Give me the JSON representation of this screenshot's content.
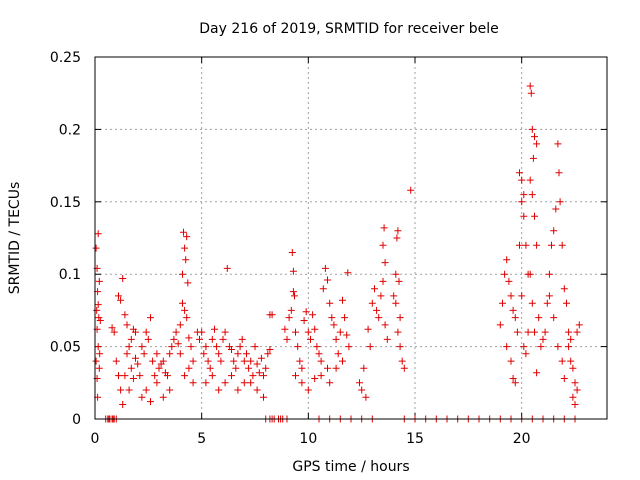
{
  "chart_data": {
    "type": "scatter",
    "title": "Day 216 of 2019, SRMTID for receiver bele",
    "xlabel": "GPS time / hours",
    "ylabel": "SRMTID / TECUs",
    "xlim": [
      0,
      24
    ],
    "ylim": [
      0,
      0.25
    ],
    "x_ticks": [
      0,
      5,
      10,
      15,
      20
    ],
    "x_tick_labels": [
      "0",
      "5",
      "10",
      "15",
      "20"
    ],
    "y_ticks": [
      0,
      0.05,
      0.1,
      0.15,
      0.2,
      0.25
    ],
    "y_tick_labels": [
      "0",
      "0.05",
      "0.1",
      "0.15",
      "0.2",
      "0.25"
    ],
    "grid": true,
    "marker": "+",
    "marker_color": "#e00000",
    "series": [
      {
        "name": "SRMTID",
        "points": [
          [
            0.05,
            0.118
          ],
          [
            0.1,
            0.104
          ],
          [
            0.15,
            0.128
          ],
          [
            0.12,
            0.088
          ],
          [
            0.08,
            0.075
          ],
          [
            0.2,
            0.095
          ],
          [
            0.1,
            0.062
          ],
          [
            0.15,
            0.05
          ],
          [
            0.05,
            0.04
          ],
          [
            0.2,
            0.035
          ],
          [
            0.1,
            0.028
          ],
          [
            0.12,
            0.015
          ],
          [
            0.18,
            0.07
          ],
          [
            0.25,
            0.068
          ],
          [
            0.22,
            0.045
          ],
          [
            0.15,
            0.079
          ],
          [
            0.5,
            0.0
          ],
          [
            0.6,
            0.0
          ],
          [
            0.7,
            0.0
          ],
          [
            0.8,
            0.0
          ],
          [
            0.9,
            0.0
          ],
          [
            1.0,
            0.0
          ],
          [
            0.65,
            0.0
          ],
          [
            0.85,
            0.0
          ],
          [
            0.8,
            0.063
          ],
          [
            0.9,
            0.06
          ],
          [
            1.0,
            0.04
          ],
          [
            1.1,
            0.085
          ],
          [
            1.2,
            0.082
          ],
          [
            1.3,
            0.097
          ],
          [
            1.1,
            0.03
          ],
          [
            1.2,
            0.02
          ],
          [
            1.3,
            0.01
          ],
          [
            1.4,
            0.072
          ],
          [
            1.5,
            0.065
          ],
          [
            1.5,
            0.045
          ],
          [
            1.6,
            0.05
          ],
          [
            1.7,
            0.055
          ],
          [
            1.8,
            0.062
          ],
          [
            1.9,
            0.06
          ],
          [
            1.4,
            0.03
          ],
          [
            1.6,
            0.02
          ],
          [
            1.7,
            0.035
          ],
          [
            1.8,
            0.028
          ],
          [
            1.9,
            0.042
          ],
          [
            2.0,
            0.038
          ],
          [
            2.1,
            0.03
          ],
          [
            2.2,
            0.05
          ],
          [
            2.3,
            0.045
          ],
          [
            2.4,
            0.06
          ],
          [
            2.5,
            0.055
          ],
          [
            2.6,
            0.07
          ],
          [
            2.2,
            0.015
          ],
          [
            2.4,
            0.02
          ],
          [
            2.6,
            0.012
          ],
          [
            2.8,
            0.03
          ],
          [
            2.9,
            0.025
          ],
          [
            3.0,
            0.035
          ],
          [
            3.1,
            0.038
          ],
          [
            3.2,
            0.04
          ],
          [
            3.3,
            0.032
          ],
          [
            3.4,
            0.03
          ],
          [
            3.5,
            0.045
          ],
          [
            3.6,
            0.05
          ],
          [
            3.7,
            0.055
          ],
          [
            3.8,
            0.06
          ],
          [
            3.9,
            0.052
          ],
          [
            2.7,
            0.04
          ],
          [
            2.9,
            0.045
          ],
          [
            3.2,
            0.015
          ],
          [
            3.5,
            0.02
          ],
          [
            4.0,
            0.065
          ],
          [
            4.1,
            0.1
          ],
          [
            4.2,
            0.118
          ],
          [
            4.3,
            0.126
          ],
          [
            4.15,
            0.129
          ],
          [
            4.25,
            0.11
          ],
          [
            4.35,
            0.094
          ],
          [
            4.1,
            0.08
          ],
          [
            4.2,
            0.075
          ],
          [
            4.3,
            0.07
          ],
          [
            4.4,
            0.056
          ],
          [
            4.5,
            0.05
          ],
          [
            4.6,
            0.04
          ],
          [
            4.0,
            0.045
          ],
          [
            4.2,
            0.03
          ],
          [
            4.4,
            0.035
          ],
          [
            4.6,
            0.025
          ],
          [
            4.8,
            0.06
          ],
          [
            4.9,
            0.055
          ],
          [
            5.0,
            0.06
          ],
          [
            5.1,
            0.045
          ],
          [
            5.2,
            0.05
          ],
          [
            5.3,
            0.04
          ],
          [
            5.4,
            0.035
          ],
          [
            5.5,
            0.055
          ],
          [
            5.6,
            0.062
          ],
          [
            5.7,
            0.05
          ],
          [
            5.8,
            0.045
          ],
          [
            5.9,
            0.04
          ],
          [
            6.0,
            0.055
          ],
          [
            6.1,
            0.06
          ],
          [
            6.2,
            0.104
          ],
          [
            6.3,
            0.05
          ],
          [
            6.4,
            0.048
          ],
          [
            6.5,
            0.04
          ],
          [
            6.6,
            0.035
          ],
          [
            6.7,
            0.045
          ],
          [
            6.8,
            0.05
          ],
          [
            6.9,
            0.055
          ],
          [
            7.0,
            0.04
          ],
          [
            5.2,
            0.025
          ],
          [
            5.5,
            0.03
          ],
          [
            5.8,
            0.02
          ],
          [
            6.1,
            0.025
          ],
          [
            6.4,
            0.03
          ],
          [
            6.7,
            0.02
          ],
          [
            7.0,
            0.025
          ],
          [
            7.1,
            0.045
          ],
          [
            7.2,
            0.035
          ],
          [
            7.3,
            0.04
          ],
          [
            7.4,
            0.03
          ],
          [
            7.5,
            0.05
          ],
          [
            7.6,
            0.038
          ],
          [
            7.7,
            0.032
          ],
          [
            7.8,
            0.042
          ],
          [
            7.9,
            0.03
          ],
          [
            8.0,
            0.035
          ],
          [
            8.1,
            0.045
          ],
          [
            8.2,
            0.048
          ],
          [
            7.3,
            0.025
          ],
          [
            7.6,
            0.02
          ],
          [
            7.9,
            0.015
          ],
          [
            8.2,
            0.072
          ],
          [
            8.3,
            0.072
          ],
          [
            8.0,
            0.0
          ],
          [
            8.2,
            0.0
          ],
          [
            8.4,
            0.0
          ],
          [
            8.6,
            0.0
          ],
          [
            8.8,
            0.0
          ],
          [
            9.0,
            0.0
          ],
          [
            8.3,
            0.0
          ],
          [
            8.7,
            0.0
          ],
          [
            8.9,
            0.062
          ],
          [
            9.0,
            0.055
          ],
          [
            9.1,
            0.07
          ],
          [
            9.2,
            0.075
          ],
          [
            9.3,
            0.088
          ],
          [
            9.25,
            0.115
          ],
          [
            9.3,
            0.102
          ],
          [
            9.35,
            0.085
          ],
          [
            9.4,
            0.06
          ],
          [
            9.5,
            0.05
          ],
          [
            9.6,
            0.04
          ],
          [
            9.7,
            0.035
          ],
          [
            9.8,
            0.068
          ],
          [
            9.9,
            0.074
          ],
          [
            10.0,
            0.06
          ],
          [
            10.1,
            0.055
          ],
          [
            10.2,
            0.072
          ],
          [
            10.3,
            0.062
          ],
          [
            10.4,
            0.05
          ],
          [
            10.5,
            0.045
          ],
          [
            10.6,
            0.04
          ],
          [
            10.7,
            0.09
          ],
          [
            10.8,
            0.104
          ],
          [
            10.9,
            0.096
          ],
          [
            11.0,
            0.08
          ],
          [
            9.4,
            0.03
          ],
          [
            9.7,
            0.025
          ],
          [
            10.0,
            0.02
          ],
          [
            10.3,
            0.028
          ],
          [
            10.6,
            0.03
          ],
          [
            10.9,
            0.035
          ],
          [
            11.0,
            0.025
          ],
          [
            10.5,
            0.0
          ],
          [
            11.0,
            0.0
          ],
          [
            11.5,
            0.0
          ],
          [
            12.0,
            0.0
          ],
          [
            12.5,
            0.0
          ],
          [
            13.0,
            0.0
          ],
          [
            11.1,
            0.07
          ],
          [
            11.2,
            0.065
          ],
          [
            11.3,
            0.055
          ],
          [
            11.4,
            0.045
          ],
          [
            11.5,
            0.06
          ],
          [
            11.6,
            0.082
          ],
          [
            11.7,
            0.07
          ],
          [
            11.8,
            0.058
          ],
          [
            11.85,
            0.101
          ],
          [
            11.9,
            0.05
          ],
          [
            11.3,
            0.035
          ],
          [
            11.6,
            0.04
          ],
          [
            12.4,
            0.025
          ],
          [
            12.5,
            0.02
          ],
          [
            12.6,
            0.035
          ],
          [
            12.7,
            0.015
          ],
          [
            12.8,
            0.062
          ],
          [
            12.9,
            0.05
          ],
          [
            13.0,
            0.08
          ],
          [
            13.1,
            0.09
          ],
          [
            13.2,
            0.075
          ],
          [
            13.3,
            0.07
          ],
          [
            13.4,
            0.085
          ],
          [
            13.5,
            0.095
          ],
          [
            13.6,
            0.065
          ],
          [
            13.7,
            0.055
          ],
          [
            13.5,
            0.12
          ],
          [
            13.6,
            0.108
          ],
          [
            13.55,
            0.132
          ],
          [
            14.0,
            0.085
          ],
          [
            14.1,
            0.08
          ],
          [
            14.2,
            0.06
          ],
          [
            14.3,
            0.05
          ],
          [
            14.4,
            0.04
          ],
          [
            14.5,
            0.035
          ],
          [
            14.1,
            0.1
          ],
          [
            14.15,
            0.125
          ],
          [
            14.2,
            0.13
          ],
          [
            14.25,
            0.095
          ],
          [
            14.3,
            0.07
          ],
          [
            14.8,
            0.158
          ],
          [
            14.5,
            0.0
          ],
          [
            15.0,
            0.0
          ],
          [
            15.5,
            0.0
          ],
          [
            16.0,
            0.0
          ],
          [
            16.5,
            0.0
          ],
          [
            17.0,
            0.0
          ],
          [
            17.5,
            0.0
          ],
          [
            18.0,
            0.0
          ],
          [
            18.5,
            0.0
          ],
          [
            19.0,
            0.065
          ],
          [
            19.1,
            0.08
          ],
          [
            19.2,
            0.1
          ],
          [
            19.3,
            0.11
          ],
          [
            19.4,
            0.095
          ],
          [
            19.5,
            0.085
          ],
          [
            19.6,
            0.075
          ],
          [
            19.7,
            0.07
          ],
          [
            19.3,
            0.05
          ],
          [
            19.5,
            0.04
          ],
          [
            19.6,
            0.028
          ],
          [
            19.7,
            0.025
          ],
          [
            19.8,
            0.06
          ],
          [
            19.9,
            0.17
          ],
          [
            20.0,
            0.165
          ],
          [
            20.1,
            0.14
          ],
          [
            20.2,
            0.12
          ],
          [
            20.3,
            0.1
          ],
          [
            20.0,
            0.15
          ],
          [
            20.1,
            0.155
          ],
          [
            19.9,
            0.12
          ],
          [
            20.0,
            0.085
          ],
          [
            20.1,
            0.05
          ],
          [
            20.2,
            0.045
          ],
          [
            20.3,
            0.06
          ],
          [
            20.4,
            0.23
          ],
          [
            20.45,
            0.225
          ],
          [
            20.5,
            0.2
          ],
          [
            20.55,
            0.18
          ],
          [
            20.6,
            0.195
          ],
          [
            20.7,
            0.19
          ],
          [
            20.4,
            0.165
          ],
          [
            20.5,
            0.155
          ],
          [
            20.6,
            0.14
          ],
          [
            20.7,
            0.12
          ],
          [
            20.4,
            0.1
          ],
          [
            20.5,
            0.08
          ],
          [
            20.6,
            0.06
          ],
          [
            20.7,
            0.032
          ],
          [
            20.8,
            0.07
          ],
          [
            20.9,
            0.05
          ],
          [
            21.0,
            0.055
          ],
          [
            21.1,
            0.06
          ],
          [
            21.2,
            0.08
          ],
          [
            21.3,
            0.1
          ],
          [
            21.4,
            0.12
          ],
          [
            21.5,
            0.13
          ],
          [
            21.6,
            0.145
          ],
          [
            21.7,
            0.19
          ],
          [
            21.75,
            0.17
          ],
          [
            21.8,
            0.15
          ],
          [
            21.9,
            0.12
          ],
          [
            22.0,
            0.09
          ],
          [
            21.3,
            0.085
          ],
          [
            21.5,
            0.07
          ],
          [
            21.7,
            0.05
          ],
          [
            21.9,
            0.04
          ],
          [
            22.0,
            0.028
          ],
          [
            22.1,
            0.08
          ],
          [
            22.2,
            0.06
          ],
          [
            22.2,
            0.05
          ],
          [
            22.3,
            0.04
          ],
          [
            22.4,
            0.035
          ],
          [
            22.5,
            0.025
          ],
          [
            22.6,
            0.06
          ],
          [
            22.7,
            0.065
          ],
          [
            22.4,
            0.015
          ],
          [
            22.5,
            0.01
          ],
          [
            22.6,
            0.02
          ],
          [
            22.3,
            0.055
          ],
          [
            19.0,
            0.0
          ],
          [
            19.5,
            0.0
          ],
          [
            20.0,
            0.0
          ],
          [
            20.5,
            0.0
          ],
          [
            21.0,
            0.0
          ],
          [
            21.5,
            0.0
          ],
          [
            22.0,
            0.0
          ],
          [
            22.5,
            0.0
          ]
        ]
      }
    ]
  }
}
